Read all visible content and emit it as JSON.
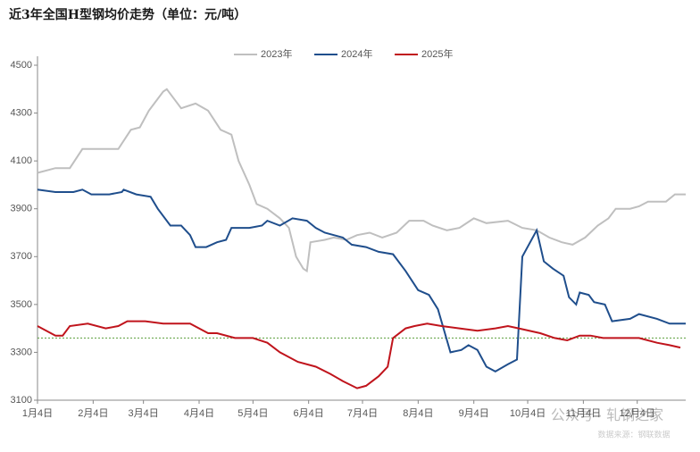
{
  "chart_data": {
    "type": "line",
    "title": "近3年全国H型钢均价走势（单位：元/吨）",
    "watermark": "公众号 · 轧钢之家",
    "source": "数据来源：钢联数据",
    "xlim": [
      0,
      361
    ],
    "xticks": [
      {
        "value": 0,
        "label": "1月4日"
      },
      {
        "value": 31,
        "label": "2月4日"
      },
      {
        "value": 59,
        "label": "3月4日"
      },
      {
        "value": 90,
        "label": "4月4日"
      },
      {
        "value": 120,
        "label": "5月4日"
      },
      {
        "value": 151,
        "label": "6月4日"
      },
      {
        "value": 181,
        "label": "7月4日"
      },
      {
        "value": 212,
        "label": "8月4日"
      },
      {
        "value": 243,
        "label": "9月4日"
      },
      {
        "value": 273,
        "label": "10月4日"
      },
      {
        "value": 304,
        "label": "11月4日"
      },
      {
        "value": 334,
        "label": "12月4日"
      }
    ],
    "ylim": [
      3100,
      4500
    ],
    "yticks": [
      3100,
      3300,
      3500,
      3700,
      3900,
      4100,
      4300,
      4500
    ],
    "reference_line": {
      "value": 3360,
      "color": "#5a9e3a"
    },
    "series": [
      {
        "name": "2023年",
        "color": "#bfbfbf",
        "x": [
          0,
          10,
          18,
          25,
          45,
          52,
          57,
          62,
          70,
          72,
          80,
          88,
          95,
          102,
          108,
          112,
          118,
          122,
          128,
          135,
          140,
          144,
          148,
          150,
          152,
          160,
          165,
          172,
          178,
          185,
          192,
          200,
          207,
          215,
          220,
          228,
          235,
          243,
          250,
          262,
          270,
          278,
          285,
          292,
          298,
          305,
          312,
          318,
          322,
          330,
          335,
          340,
          350,
          355,
          361
        ],
        "values": [
          4050,
          4070,
          4070,
          4150,
          4150,
          4230,
          4240,
          4310,
          4390,
          4400,
          4320,
          4340,
          4310,
          4230,
          4210,
          4100,
          4000,
          3920,
          3900,
          3860,
          3820,
          3700,
          3650,
          3640,
          3760,
          3770,
          3780,
          3770,
          3790,
          3800,
          3780,
          3800,
          3850,
          3850,
          3830,
          3810,
          3820,
          3860,
          3840,
          3850,
          3820,
          3810,
          3780,
          3760,
          3750,
          3780,
          3830,
          3860,
          3900,
          3900,
          3910,
          3930,
          3930,
          3960,
          3960
        ]
      },
      {
        "name": "2024年",
        "color": "#1f4e8c",
        "x": [
          0,
          10,
          20,
          25,
          30,
          40,
          47,
          48,
          55,
          63,
          67,
          74,
          80,
          85,
          88,
          94,
          100,
          105,
          108,
          118,
          125,
          128,
          135,
          142,
          150,
          155,
          160,
          170,
          175,
          183,
          190,
          198,
          205,
          212,
          218,
          223,
          230,
          236,
          240,
          245,
          250,
          255,
          262,
          267,
          270,
          278,
          282,
          287,
          293,
          296,
          300,
          302,
          307,
          310,
          316,
          320,
          330,
          335,
          345,
          352,
          361
        ],
        "values": [
          3980,
          3970,
          3970,
          3980,
          3960,
          3960,
          3970,
          3980,
          3960,
          3950,
          3900,
          3830,
          3830,
          3790,
          3740,
          3740,
          3760,
          3770,
          3820,
          3820,
          3830,
          3850,
          3830,
          3860,
          3850,
          3820,
          3800,
          3780,
          3750,
          3740,
          3720,
          3710,
          3640,
          3560,
          3540,
          3480,
          3300,
          3310,
          3330,
          3310,
          3240,
          3220,
          3250,
          3270,
          3700,
          3810,
          3680,
          3650,
          3620,
          3530,
          3500,
          3550,
          3540,
          3510,
          3500,
          3430,
          3440,
          3460,
          3440,
          3420,
          3420
        ]
      },
      {
        "name": "2025年",
        "color": "#c0141c",
        "x": [
          0,
          10,
          14,
          18,
          28,
          38,
          45,
          50,
          60,
          70,
          85,
          95,
          100,
          110,
          120,
          128,
          135,
          145,
          155,
          163,
          170,
          178,
          183,
          190,
          195,
          198,
          205,
          210,
          217,
          225,
          235,
          245,
          255,
          262,
          268,
          280,
          288,
          295,
          302,
          308,
          315,
          325,
          335,
          345,
          352,
          358
        ],
        "values": [
          3410,
          3370,
          3370,
          3410,
          3420,
          3400,
          3410,
          3430,
          3430,
          3420,
          3420,
          3380,
          3380,
          3360,
          3360,
          3340,
          3300,
          3260,
          3240,
          3210,
          3180,
          3150,
          3160,
          3200,
          3240,
          3360,
          3400,
          3410,
          3420,
          3410,
          3400,
          3390,
          3400,
          3410,
          3400,
          3380,
          3360,
          3350,
          3370,
          3370,
          3360,
          3360,
          3360,
          3340,
          3330,
          3320
        ]
      }
    ]
  }
}
